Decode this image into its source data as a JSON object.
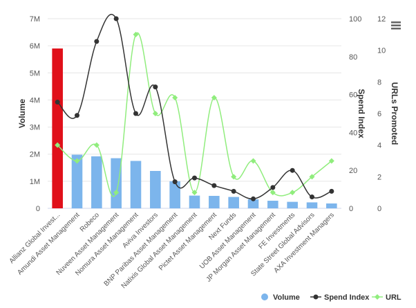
{
  "chart_data": {
    "type": "bar",
    "categories": [
      "Allianz Global Invest...",
      "Amundi Asset Management",
      "Robeco",
      "Nuveen Asset Management",
      "Nomura Asset Management",
      "Aviva Investors",
      "BNP Paribas Asset Management",
      "Natixis Global Asset Management",
      "Pictet Asset Management",
      "Next Funds",
      "UOB Asset Management",
      "JP Morgan Asset Management",
      "FE Investments",
      "State Street Global Advisors",
      "AXA Investment Managers"
    ],
    "series": [
      {
        "name": "Volume",
        "type": "bar",
        "axis": "Volume",
        "color": "#7cb5ec",
        "highlight": {
          "index": 0,
          "color": "#e0101a"
        },
        "values": [
          5900000,
          1980000,
          1920000,
          1850000,
          1750000,
          1380000,
          1000000,
          470000,
          460000,
          420000,
          330000,
          280000,
          240000,
          220000,
          180000
        ]
      },
      {
        "name": "Spend Index",
        "type": "spline",
        "axis": "Spend Index",
        "color": "#333333",
        "values": [
          56,
          49,
          88,
          100,
          50,
          64,
          14,
          16,
          12,
          9,
          5,
          11,
          20,
          6,
          9
        ]
      },
      {
        "name": "URL",
        "type": "spline",
        "axis": "URLs Promoted",
        "color": "#90ed7d",
        "values": [
          4,
          3,
          4,
          1,
          11,
          6,
          7,
          1,
          7,
          2,
          3,
          1,
          1,
          2,
          3
        ]
      }
    ],
    "axes": [
      {
        "title": "Volume",
        "position": "left",
        "ticks": [
          "0",
          "1M",
          "2M",
          "3M",
          "4M",
          "5M",
          "6M",
          "7M"
        ],
        "range": [
          0,
          7000000
        ]
      },
      {
        "title": "Spend Index",
        "position": "right",
        "ticks": [
          "0",
          "20",
          "40",
          "60",
          "80",
          "100"
        ],
        "range": [
          0,
          100
        ]
      },
      {
        "title": "URLs Promoted",
        "position": "right",
        "ticks": [
          "0",
          "2",
          "4",
          "6",
          "8",
          "10",
          "12"
        ],
        "range": [
          0,
          12
        ]
      }
    ],
    "grid": true,
    "legend_position": "bottom-right"
  },
  "menu": {
    "icon": "hamburger-menu-icon"
  }
}
